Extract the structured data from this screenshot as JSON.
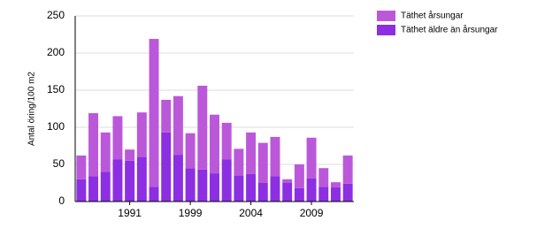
{
  "chart_data": {
    "type": "stacked_bar",
    "y_label": "Antal öring/100 m2",
    "categories": [
      null,
      null,
      null,
      null,
      "1991",
      null,
      null,
      null,
      null,
      "1999",
      null,
      null,
      null,
      null,
      "2004",
      null,
      null,
      null,
      null,
      "2009",
      null,
      null,
      null
    ],
    "series": [
      {
        "name": "Täthet årsungar",
        "color": "#bb58da",
        "values": [
          32,
          85,
          53,
          58,
          15,
          60,
          199,
          44,
          79,
          47,
          113,
          79,
          49,
          36,
          56,
          54,
          53,
          5,
          32,
          55,
          25,
          7,
          38
        ]
      },
      {
        "name": "Täthet äldre än årsungar",
        "color": "#8c2fe2",
        "values": [
          30,
          34,
          40,
          57,
          55,
          60,
          20,
          93,
          63,
          45,
          43,
          38,
          57,
          35,
          37,
          25,
          34,
          25,
          18,
          31,
          20,
          19,
          24
        ]
      }
    ],
    "ylim": [
      0,
      250
    ],
    "yticks": [
      0,
      50,
      100,
      150,
      200,
      250
    ],
    "grid": true
  }
}
